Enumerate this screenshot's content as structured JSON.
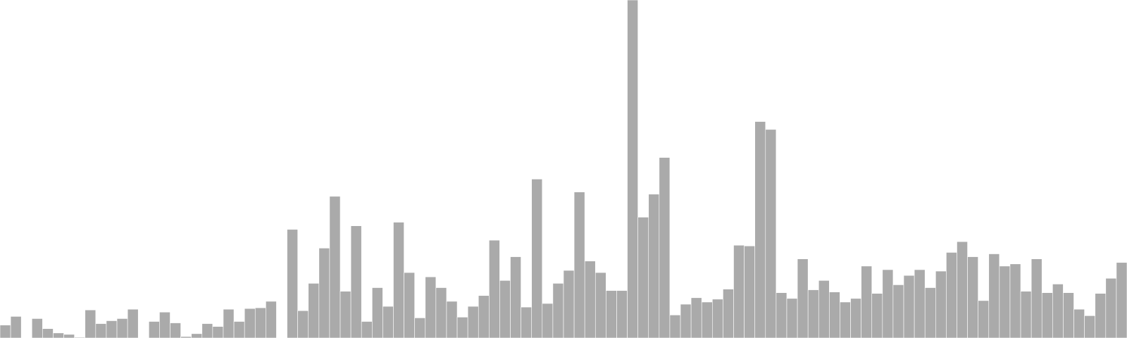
{
  "chart_data": {
    "type": "bar",
    "title": "",
    "xlabel": "",
    "ylabel": "",
    "grid": false,
    "legend": "none",
    "bar_color": "#aaaaaa",
    "ylim": [
      0,
      470
    ],
    "values": [
      18,
      30,
      0,
      27,
      13,
      7,
      5,
      1,
      39,
      20,
      24,
      27,
      40,
      null,
      23,
      36,
      21,
      2,
      6,
      20,
      16,
      40,
      23,
      41,
      42,
      51,
      null,
      151,
      38,
      76,
      125,
      197,
      65,
      156,
      23,
      70,
      44,
      161,
      91,
      28,
      85,
      70,
      51,
      29,
      44,
      59,
      136,
      80,
      113,
      43,
      221,
      48,
      76,
      94,
      203,
      107,
      91,
      66,
      66,
      470,
      168,
      200,
      251,
      32,
      47,
      56,
      50,
      54,
      68,
      129,
      128,
      301,
      290,
      63,
      55,
      110,
      67,
      80,
      64,
      50,
      55,
      100,
      62,
      95,
      74,
      87,
      95,
      70,
      93,
      119,
      134,
      113,
      52,
      117,
      100,
      103,
      65,
      110,
      63,
      75,
      63,
      40,
      31,
      62,
      83,
      105
    ]
  }
}
